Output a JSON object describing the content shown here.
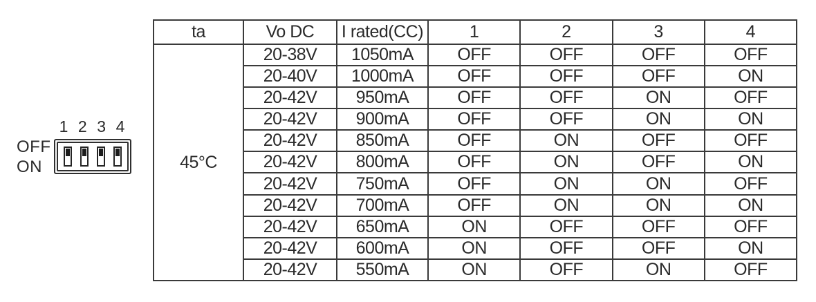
{
  "colors": {
    "text": "#2a2a2a",
    "border": "#3a3a3a",
    "background": "#ffffff",
    "switch_nub": "#1c1c1c"
  },
  "dip_switch": {
    "numbers": [
      "1",
      "2",
      "3",
      "4"
    ],
    "off_label": "OFF",
    "on_label": "ON",
    "switch_positions": [
      "OFF",
      "OFF",
      "OFF",
      "OFF"
    ]
  },
  "table": {
    "headers": [
      "ta",
      "Vo DC",
      "I rated(CC)",
      "1",
      "2",
      "3",
      "4"
    ],
    "ambient_temperature": "45°C",
    "rows": [
      [
        "20-38V",
        "1050mA",
        "OFF",
        "OFF",
        "OFF",
        "OFF"
      ],
      [
        "20-40V",
        "1000mA",
        "OFF",
        "OFF",
        "OFF",
        "ON"
      ],
      [
        "20-42V",
        "950mA",
        "OFF",
        "OFF",
        "ON",
        "OFF"
      ],
      [
        "20-42V",
        "900mA",
        "OFF",
        "OFF",
        "ON",
        "ON"
      ],
      [
        "20-42V",
        "850mA",
        "OFF",
        "ON",
        "OFF",
        "OFF"
      ],
      [
        "20-42V",
        "800mA",
        "OFF",
        "ON",
        "OFF",
        "ON"
      ],
      [
        "20-42V",
        "750mA",
        "OFF",
        "ON",
        "ON",
        "OFF"
      ],
      [
        "20-42V",
        "700mA",
        "OFF",
        "ON",
        "ON",
        "ON"
      ],
      [
        "20-42V",
        "650mA",
        "ON",
        "OFF",
        "OFF",
        "OFF"
      ],
      [
        "20-42V",
        "600mA",
        "ON",
        "OFF",
        "OFF",
        "ON"
      ],
      [
        "20-42V",
        "550mA",
        "ON",
        "OFF",
        "ON",
        "OFF"
      ]
    ]
  }
}
